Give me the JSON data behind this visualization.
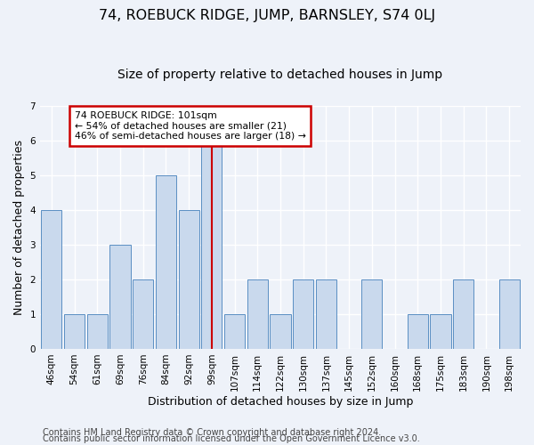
{
  "title": "74, ROEBUCK RIDGE, JUMP, BARNSLEY, S74 0LJ",
  "subtitle": "Size of property relative to detached houses in Jump",
  "xlabel": "Distribution of detached houses by size in Jump",
  "ylabel": "Number of detached properties",
  "categories": [
    "46sqm",
    "54sqm",
    "61sqm",
    "69sqm",
    "76sqm",
    "84sqm",
    "92sqm",
    "99sqm",
    "107sqm",
    "114sqm",
    "122sqm",
    "130sqm",
    "137sqm",
    "145sqm",
    "152sqm",
    "160sqm",
    "168sqm",
    "175sqm",
    "183sqm",
    "190sqm",
    "198sqm"
  ],
  "values": [
    4,
    1,
    1,
    3,
    2,
    5,
    4,
    6,
    1,
    2,
    1,
    2,
    2,
    0,
    2,
    0,
    1,
    1,
    2,
    0,
    2
  ],
  "bar_color": "#c9d9ed",
  "bar_edge_color": "#5a8fc3",
  "highlight_index": 7,
  "highlight_line_color": "#cc0000",
  "ylim": [
    0,
    7
  ],
  "yticks": [
    0,
    1,
    2,
    3,
    4,
    5,
    6,
    7
  ],
  "annotation_title": "74 ROEBUCK RIDGE: 101sqm",
  "annotation_line1": "← 54% of detached houses are smaller (21)",
  "annotation_line2": "46% of semi-detached houses are larger (18) →",
  "annotation_box_color": "#cc0000",
  "footer_line1": "Contains HM Land Registry data © Crown copyright and database right 2024.",
  "footer_line2": "Contains public sector information licensed under the Open Government Licence v3.0.",
  "background_color": "#eef2f9",
  "grid_color": "#ffffff",
  "title_fontsize": 11.5,
  "subtitle_fontsize": 10,
  "axis_label_fontsize": 9,
  "tick_fontsize": 7.5,
  "footer_fontsize": 7.0
}
